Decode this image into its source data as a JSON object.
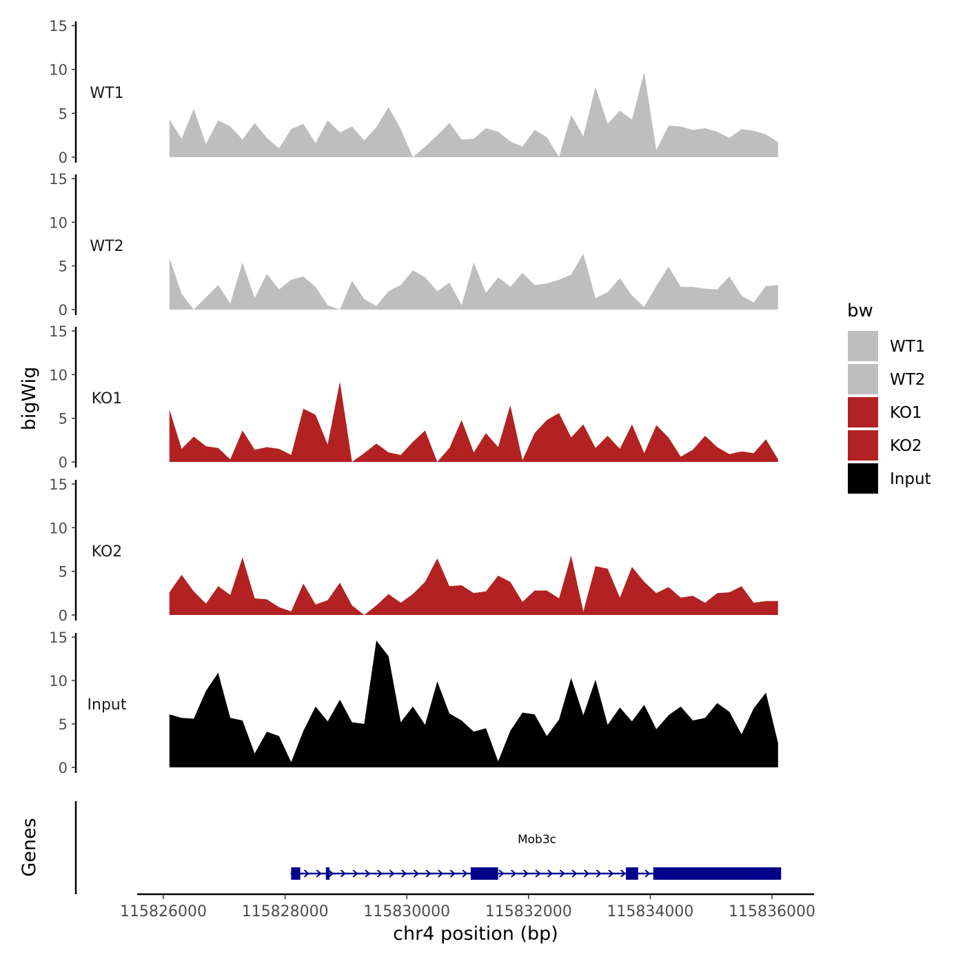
{
  "chart_data": {
    "type": "area",
    "title": "",
    "ylabel": "bigWig",
    "xlabel": "chr4 position (bp)",
    "genes_panel_label": "Genes",
    "ylim": [
      0,
      15
    ],
    "y_ticks": [
      0,
      5,
      10,
      15
    ],
    "x_ticks": [
      115826000,
      115828000,
      115830000,
      115832000,
      115834000,
      115836000
    ],
    "x_tick_labels": [
      "115826000",
      "115828000",
      "115830000",
      "115832000",
      "115834000",
      "115836000"
    ],
    "x_data_range": [
      115826100,
      115836100
    ],
    "legend": {
      "title": "bw",
      "position": "right",
      "entries": [
        {
          "label": "WT1",
          "color": "#bebebe"
        },
        {
          "label": "WT2",
          "color": "#bebebe"
        },
        {
          "label": "KO1",
          "color": "#b22222"
        },
        {
          "label": "KO2",
          "color": "#b22222"
        },
        {
          "label": "Input",
          "color": "#000000"
        }
      ]
    },
    "x": [
      115826100,
      115826300,
      115826500,
      115826700,
      115826900,
      115827100,
      115827300,
      115827500,
      115827700,
      115827900,
      115828100,
      115828300,
      115828500,
      115828700,
      115828900,
      115829100,
      115829300,
      115829500,
      115829700,
      115829900,
      115830100,
      115830300,
      115830500,
      115830700,
      115830900,
      115831100,
      115831300,
      115831500,
      115831700,
      115831900,
      115832100,
      115832300,
      115832500,
      115832700,
      115832900,
      115833100,
      115833300,
      115833500,
      115833700,
      115833900,
      115834100,
      115834300,
      115834500,
      115834700,
      115834900,
      115835100,
      115835300,
      115835500,
      115835700,
      115835900,
      115836100
    ],
    "series": [
      {
        "name": "WT1",
        "color": "#bebebe",
        "values": [
          4.3,
          2.1,
          5.5,
          1.5,
          4.2,
          3.5,
          2.0,
          3.9,
          2.2,
          1.0,
          3.2,
          3.8,
          1.6,
          4.2,
          2.8,
          3.5,
          1.9,
          3.4,
          5.7,
          3.2,
          0.0,
          1.2,
          2.5,
          3.9,
          2.0,
          2.1,
          3.3,
          2.9,
          1.8,
          1.2,
          3.1,
          2.3,
          0.0,
          4.8,
          2.4,
          8.0,
          3.8,
          5.3,
          4.3,
          9.7,
          0.8,
          3.6,
          3.5,
          3.1,
          3.3,
          2.9,
          2.2,
          3.2,
          3.0,
          2.6,
          1.7
        ]
      },
      {
        "name": "WT2",
        "color": "#bebebe",
        "values": [
          5.9,
          1.8,
          0.0,
          1.4,
          2.8,
          0.7,
          5.4,
          1.3,
          4.1,
          2.3,
          3.4,
          3.8,
          2.6,
          0.5,
          0.0,
          3.3,
          1.2,
          0.4,
          2.1,
          2.8,
          4.5,
          3.7,
          2.1,
          3.1,
          0.5,
          5.4,
          1.9,
          3.7,
          2.6,
          4.2,
          2.8,
          3.0,
          3.4,
          4.0,
          6.4,
          1.3,
          2.0,
          3.6,
          1.6,
          0.3,
          2.7,
          4.9,
          2.6,
          2.6,
          2.4,
          2.3,
          3.8,
          1.6,
          0.8,
          2.7,
          2.8
        ]
      },
      {
        "name": "KO1",
        "color": "#b22222",
        "values": [
          6.0,
          1.5,
          2.9,
          1.8,
          1.6,
          0.3,
          3.6,
          1.4,
          1.7,
          1.5,
          0.8,
          6.1,
          5.4,
          2.0,
          9.2,
          0.0,
          1.0,
          2.1,
          1.1,
          0.8,
          2.3,
          3.6,
          0.0,
          1.6,
          4.8,
          1.1,
          3.3,
          1.7,
          6.5,
          0.2,
          3.3,
          4.8,
          5.6,
          2.8,
          4.3,
          1.6,
          3.0,
          1.5,
          4.3,
          1.0,
          4.2,
          2.8,
          0.6,
          1.4,
          3.0,
          1.7,
          0.9,
          1.2,
          1.0,
          2.6,
          0.3
        ]
      },
      {
        "name": "KO2",
        "color": "#b22222",
        "values": [
          2.6,
          4.6,
          2.7,
          1.3,
          3.3,
          2.3,
          6.6,
          1.9,
          1.8,
          0.9,
          0.4,
          3.6,
          1.2,
          1.7,
          3.7,
          1.1,
          0.0,
          1.1,
          2.4,
          1.4,
          2.4,
          3.8,
          6.5,
          3.3,
          3.4,
          2.5,
          2.7,
          4.5,
          3.8,
          1.5,
          2.8,
          2.8,
          1.9,
          6.8,
          0.4,
          5.6,
          5.3,
          2.0,
          5.5,
          3.8,
          2.5,
          3.2,
          2.0,
          2.2,
          1.4,
          2.5,
          2.6,
          3.3,
          1.4,
          1.6,
          1.6
        ]
      },
      {
        "name": "Input",
        "color": "#000000",
        "values": [
          6.1,
          5.7,
          5.6,
          8.8,
          10.9,
          5.7,
          5.4,
          1.6,
          4.1,
          3.6,
          0.6,
          4.2,
          7.0,
          5.3,
          7.8,
          5.2,
          5.0,
          14.6,
          12.8,
          5.2,
          7.0,
          4.9,
          9.9,
          6.2,
          5.4,
          4.1,
          4.5,
          0.7,
          4.2,
          6.3,
          6.1,
          3.6,
          5.5,
          10.3,
          6.0,
          10.1,
          4.9,
          6.9,
          5.3,
          7.2,
          4.4,
          6.0,
          7.0,
          5.4,
          5.7,
          7.4,
          6.4,
          3.8,
          6.8,
          8.6,
          2.8
        ]
      }
    ],
    "gene_track": {
      "gene_name": "Mob3c",
      "strand": "+",
      "start": 115828000,
      "end": 115836150,
      "exons": [
        {
          "start": 115828100,
          "end": 115828250
        },
        {
          "start": 115828670,
          "end": 115828730
        },
        {
          "start": 115831050,
          "end": 115831500
        },
        {
          "start": 115833600,
          "end": 115833800
        },
        {
          "start": 115834050,
          "end": 115836150
        }
      ],
      "color": "#00008b"
    }
  }
}
